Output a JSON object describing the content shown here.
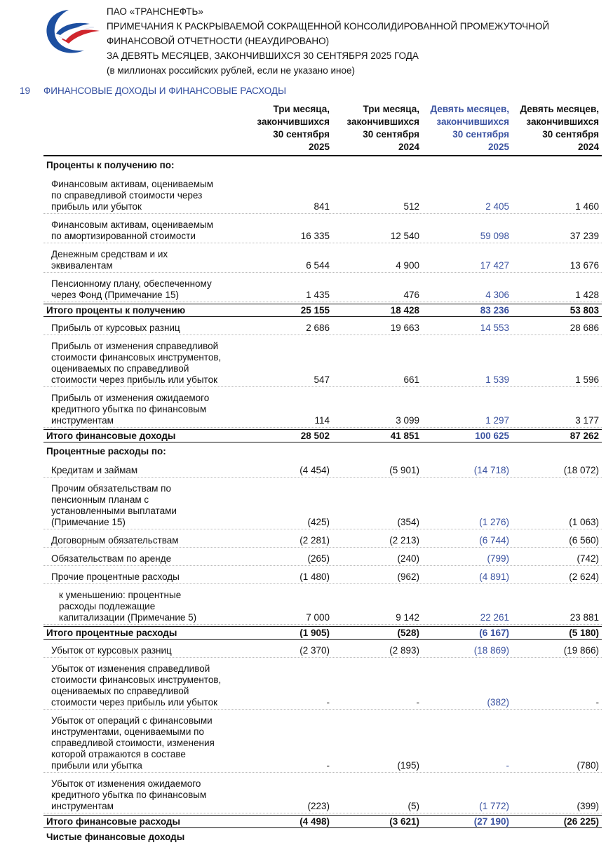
{
  "header": {
    "company": "ПАО «ТРАНСНЕФТЬ»",
    "lines": [
      "ПРИМЕЧАНИЯ К РАСКРЫВАЕМОЙ СОКРАЩЕННОЙ КОНСОЛИДИРОВАННОЙ ПРОМЕЖУТОЧНОЙ",
      "ФИНАНСОВОЙ ОТЧЕТНОСТИ (НЕАУДИРОВАНО)",
      "ЗА ДЕВЯТЬ МЕСЯЦЕВ, ЗАКОНЧИВШИХСЯ 30 СЕНТЯБРЯ 2025 ГОДА",
      "(в миллионах российских рублей, если не указано иное)"
    ]
  },
  "section": {
    "number": "19",
    "title": "ФИНАНСОВЫЕ ДОХОДЫ И ФИНАНСОВЫЕ РАСХОДЫ"
  },
  "table": {
    "columns": [
      [
        "Три месяца,",
        "закончившихся",
        "30 сентября",
        "2025"
      ],
      [
        "Три месяца,",
        "закончившихся",
        "30 сентября",
        "2024"
      ],
      [
        "Девять месяцев,",
        "закончившихся",
        "30 сентября",
        "2025"
      ],
      [
        "Девять месяцев,",
        "закончившихся",
        "30 сентября",
        "2024"
      ]
    ],
    "rows": [
      {
        "kind": "heading",
        "label": [
          "Проценты к получению по:"
        ]
      },
      {
        "kind": "item",
        "label": [
          "Финансовым активам, оцениваемым",
          "по справедливой стоимости через",
          "прибыль или убыток"
        ],
        "values": [
          "841",
          "512",
          "2 405",
          "1 460"
        ]
      },
      {
        "kind": "item",
        "label": [
          "Финансовым активам, оцениваемым",
          "по амортизированной стоимости"
        ],
        "values": [
          "16 335",
          "12 540",
          "59 098",
          "37 239"
        ]
      },
      {
        "kind": "item",
        "label": [
          "Денежным средствам и их",
          "эквивалентам"
        ],
        "values": [
          "6 544",
          "4 900",
          "17 427",
          "13 676"
        ]
      },
      {
        "kind": "item",
        "label": [
          "Пенсионному плану, обеспеченному",
          "через Фонд (Примечание 15)"
        ],
        "values": [
          "1 435",
          "476",
          "4 306",
          "1 428"
        ]
      },
      {
        "kind": "total",
        "label": [
          "Итого проценты к получению"
        ],
        "values": [
          "25 155",
          "18 428",
          "83 236",
          "53 803"
        ]
      },
      {
        "kind": "item",
        "label": [
          "Прибыль от курсовых разниц"
        ],
        "values": [
          "2 686",
          "19 663",
          "14 553",
          "28 686"
        ]
      },
      {
        "kind": "item",
        "label": [
          "Прибыль от изменения справедливой",
          "стоимости финансовых инструментов,",
          "оцениваемых по справедливой",
          "стоимости через прибыль или убыток"
        ],
        "values": [
          "547",
          "661",
          "1 539",
          "1 596"
        ]
      },
      {
        "kind": "item",
        "label": [
          "Прибыль от изменения ожидаемого",
          "кредитного убытка по финансовым",
          "инструментам"
        ],
        "values": [
          "114",
          "3 099",
          "1 297",
          "3 177"
        ]
      },
      {
        "kind": "total",
        "label": [
          "Итого финансовые доходы"
        ],
        "values": [
          "28 502",
          "41 851",
          "100 625",
          "87 262"
        ]
      },
      {
        "kind": "heading",
        "label": [
          "Процентные расходы по:"
        ]
      },
      {
        "kind": "item",
        "label": [
          "Кредитам и займам"
        ],
        "values": [
          "(4 454)",
          "(5 901)",
          "(14 718)",
          "(18 072)"
        ]
      },
      {
        "kind": "item",
        "label": [
          "Прочим обязательствам по",
          "пенсионным планам с",
          "установленными выплатами",
          "(Примечание 15)"
        ],
        "values": [
          "(425)",
          "(354)",
          "(1 276)",
          "(1 063)"
        ]
      },
      {
        "kind": "item",
        "label": [
          "Договорным обязательствам"
        ],
        "values": [
          "(2 281)",
          "(2 213)",
          "(6 744)",
          "(6 560)"
        ]
      },
      {
        "kind": "item",
        "label": [
          "Обязательствам по аренде"
        ],
        "values": [
          "(265)",
          "(240)",
          "(799)",
          "(742)"
        ]
      },
      {
        "kind": "item",
        "label": [
          "Прочие процентные расходы"
        ],
        "values": [
          "(1 480)",
          "(962)",
          "(4 891)",
          "(2 624)"
        ]
      },
      {
        "kind": "note",
        "label": [
          "к уменьшению: процентные",
          "расходы подлежащие",
          "капитализации (Примечание 5)"
        ],
        "values": [
          "7 000",
          "9 142",
          "22 261",
          "23 881"
        ]
      },
      {
        "kind": "total",
        "label": [
          "Итого процентные расходы"
        ],
        "values": [
          "(1 905)",
          "(528)",
          "(6 167)",
          "(5 180)"
        ]
      },
      {
        "kind": "item",
        "label": [
          "Убыток от курсовых разниц"
        ],
        "values": [
          "(2 370)",
          "(2 893)",
          "(18 869)",
          "(19 866)"
        ]
      },
      {
        "kind": "item",
        "label": [
          "Убыток от изменения справедливой",
          "стоимости финансовых инструментов,",
          "оцениваемых по справедливой",
          "стоимости через прибыль или убыток"
        ],
        "values": [
          "-",
          "-",
          "(382)",
          "-"
        ]
      },
      {
        "kind": "item",
        "label": [
          "Убыток от операций с финансовыми",
          "инструментами, оцениваемыми по",
          "справедливой стоимости, изменения",
          "которой отражаются в составе",
          "прибыли или убытка"
        ],
        "values": [
          "-",
          "(195)",
          "-",
          "(780)"
        ]
      },
      {
        "kind": "item",
        "label": [
          "Убыток от изменения ожидаемого",
          "кредитного убытка по финансовым",
          "инструментам"
        ],
        "values": [
          "(223)",
          "(5)",
          "(1 772)",
          "(399)"
        ]
      },
      {
        "kind": "total",
        "label": [
          "Итого финансовые расходы"
        ],
        "values": [
          "(4 498)",
          "(3 621)",
          "(27 190)",
          "(26 225)"
        ]
      },
      {
        "kind": "heading",
        "label": [
          "Чистые финансовые доходы"
        ]
      }
    ]
  }
}
